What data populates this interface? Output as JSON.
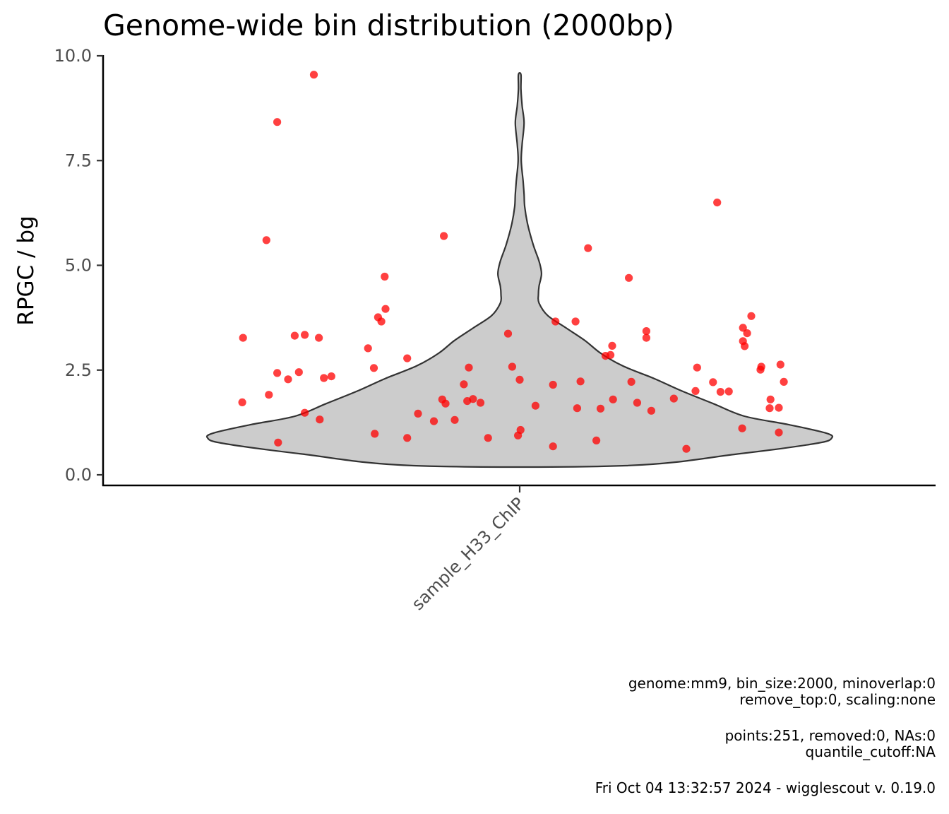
{
  "chart_data": {
    "type": "violin",
    "title": "Genome-wide bin distribution (2000bp)",
    "xlabel": "",
    "ylabel": "RPGC / bg",
    "categories": [
      "sample_H33_ChIP"
    ],
    "ylim": [
      0,
      10
    ],
    "yticks": [
      0,
      2.5,
      5,
      7.5,
      10
    ],
    "ytick_labels": [
      "0.0",
      "2.5",
      "5.0",
      "7.5",
      "10.0"
    ],
    "grid": false,
    "legend": "none",
    "violin": {
      "category": "sample_H33_ChIP",
      "fill": "#cccccc",
      "stroke": "#333333",
      "y_min": 0.22,
      "y_max": 9.55,
      "density_profile": [
        {
          "y": 0.22,
          "w": 0.34
        },
        {
          "y": 0.5,
          "w": 0.7
        },
        {
          "y": 0.75,
          "w": 0.95
        },
        {
          "y": 0.88,
          "w": 1.0
        },
        {
          "y": 1.0,
          "w": 0.98
        },
        {
          "y": 1.2,
          "w": 0.86
        },
        {
          "y": 1.4,
          "w": 0.72
        },
        {
          "y": 1.7,
          "w": 0.62
        },
        {
          "y": 2.0,
          "w": 0.52
        },
        {
          "y": 2.3,
          "w": 0.43
        },
        {
          "y": 2.6,
          "w": 0.33
        },
        {
          "y": 2.9,
          "w": 0.26
        },
        {
          "y": 3.2,
          "w": 0.21
        },
        {
          "y": 3.5,
          "w": 0.15
        },
        {
          "y": 3.8,
          "w": 0.09
        },
        {
          "y": 4.1,
          "w": 0.062
        },
        {
          "y": 4.3,
          "w": 0.06
        },
        {
          "y": 4.5,
          "w": 0.062
        },
        {
          "y": 4.8,
          "w": 0.07
        },
        {
          "y": 5.1,
          "w": 0.062
        },
        {
          "y": 5.5,
          "w": 0.043
        },
        {
          "y": 6.0,
          "w": 0.025
        },
        {
          "y": 6.4,
          "w": 0.016
        },
        {
          "y": 6.7,
          "w": 0.014
        },
        {
          "y": 7.0,
          "w": 0.011
        },
        {
          "y": 7.5,
          "w": 0.005
        },
        {
          "y": 7.9,
          "w": 0.008
        },
        {
          "y": 8.4,
          "w": 0.014
        },
        {
          "y": 8.8,
          "w": 0.008
        },
        {
          "y": 9.2,
          "w": 0.004
        },
        {
          "y": 9.55,
          "w": 0.004
        }
      ]
    },
    "points": {
      "color": "#ff0000",
      "opacity": 0.75,
      "jitter_note": "x offsets relative to category center, in category-width units",
      "data": [
        {
          "dx": -0.332,
          "y": 3.27
        },
        {
          "dx": -0.333,
          "y": 1.73
        },
        {
          "dx": -0.304,
          "y": 5.6
        },
        {
          "dx": -0.301,
          "y": 1.91
        },
        {
          "dx": -0.291,
          "y": 8.42
        },
        {
          "dx": -0.291,
          "y": 2.43
        },
        {
          "dx": -0.29,
          "y": 0.77
        },
        {
          "dx": -0.278,
          "y": 2.28
        },
        {
          "dx": -0.27,
          "y": 3.32
        },
        {
          "dx": -0.265,
          "y": 2.45
        },
        {
          "dx": -0.258,
          "y": 3.34
        },
        {
          "dx": -0.258,
          "y": 1.48
        },
        {
          "dx": -0.247,
          "y": 9.55
        },
        {
          "dx": -0.241,
          "y": 3.27
        },
        {
          "dx": -0.24,
          "y": 1.32
        },
        {
          "dx": -0.235,
          "y": 2.31
        },
        {
          "dx": -0.226,
          "y": 2.35
        },
        {
          "dx": -0.182,
          "y": 3.02
        },
        {
          "dx": -0.175,
          "y": 2.55
        },
        {
          "dx": -0.174,
          "y": 0.98
        },
        {
          "dx": -0.17,
          "y": 3.76
        },
        {
          "dx": -0.166,
          "y": 3.66
        },
        {
          "dx": -0.162,
          "y": 4.73
        },
        {
          "dx": -0.161,
          "y": 3.96
        },
        {
          "dx": -0.135,
          "y": 2.78
        },
        {
          "dx": -0.135,
          "y": 0.88
        },
        {
          "dx": -0.122,
          "y": 1.46
        },
        {
          "dx": -0.103,
          "y": 1.28
        },
        {
          "dx": -0.093,
          "y": 1.8
        },
        {
          "dx": -0.091,
          "y": 5.7
        },
        {
          "dx": -0.089,
          "y": 1.7
        },
        {
          "dx": -0.078,
          "y": 1.31
        },
        {
          "dx": -0.067,
          "y": 2.16
        },
        {
          "dx": -0.063,
          "y": 1.76
        },
        {
          "dx": -0.061,
          "y": 2.56
        },
        {
          "dx": -0.056,
          "y": 1.81
        },
        {
          "dx": -0.047,
          "y": 1.72
        },
        {
          "dx": -0.038,
          "y": 0.88
        },
        {
          "dx": -0.014,
          "y": 3.37
        },
        {
          "dx": -0.009,
          "y": 2.58
        },
        {
          "dx": -0.002,
          "y": 0.94
        },
        {
          "dx": 0.0,
          "y": 2.27
        },
        {
          "dx": 0.001,
          "y": 1.07
        },
        {
          "dx": 0.019,
          "y": 1.65
        },
        {
          "dx": 0.04,
          "y": 2.15
        },
        {
          "dx": 0.04,
          "y": 0.68
        },
        {
          "dx": 0.043,
          "y": 3.66
        },
        {
          "dx": 0.067,
          "y": 3.66
        },
        {
          "dx": 0.069,
          "y": 1.59
        },
        {
          "dx": 0.073,
          "y": 2.23
        },
        {
          "dx": 0.082,
          "y": 5.41
        },
        {
          "dx": 0.092,
          "y": 0.82
        },
        {
          "dx": 0.097,
          "y": 1.58
        },
        {
          "dx": 0.103,
          "y": 2.84
        },
        {
          "dx": 0.109,
          "y": 2.86
        },
        {
          "dx": 0.111,
          "y": 3.08
        },
        {
          "dx": 0.112,
          "y": 1.8
        },
        {
          "dx": 0.131,
          "y": 4.7
        },
        {
          "dx": 0.134,
          "y": 2.22
        },
        {
          "dx": 0.141,
          "y": 1.72
        },
        {
          "dx": 0.152,
          "y": 3.43
        },
        {
          "dx": 0.152,
          "y": 3.27
        },
        {
          "dx": 0.158,
          "y": 1.53
        },
        {
          "dx": 0.185,
          "y": 1.82
        },
        {
          "dx": 0.2,
          "y": 0.62
        },
        {
          "dx": 0.211,
          "y": 2.0
        },
        {
          "dx": 0.213,
          "y": 2.56
        },
        {
          "dx": 0.232,
          "y": 2.21
        },
        {
          "dx": 0.237,
          "y": 6.5
        },
        {
          "dx": 0.241,
          "y": 1.98
        },
        {
          "dx": 0.251,
          "y": 1.99
        },
        {
          "dx": 0.267,
          "y": 1.11
        },
        {
          "dx": 0.268,
          "y": 3.51
        },
        {
          "dx": 0.268,
          "y": 3.19
        },
        {
          "dx": 0.27,
          "y": 3.07
        },
        {
          "dx": 0.273,
          "y": 3.38
        },
        {
          "dx": 0.278,
          "y": 3.79
        },
        {
          "dx": 0.289,
          "y": 2.51
        },
        {
          "dx": 0.29,
          "y": 2.58
        },
        {
          "dx": 0.3,
          "y": 1.59
        },
        {
          "dx": 0.301,
          "y": 1.8
        },
        {
          "dx": 0.311,
          "y": 1.6
        },
        {
          "dx": 0.311,
          "y": 1.01
        },
        {
          "dx": 0.313,
          "y": 2.63
        },
        {
          "dx": 0.317,
          "y": 2.22
        }
      ]
    }
  },
  "caption": {
    "line1": "genome:mm9, bin_size:2000, minoverlap:0",
    "line2": "remove_top:0, scaling:none",
    "line3": "points:251, removed:0, NAs:0",
    "line4": "quantile_cutoff:NA",
    "line5": "Fri Oct 04 13:32:57 2024 - wigglescout v. 0.19.0"
  }
}
